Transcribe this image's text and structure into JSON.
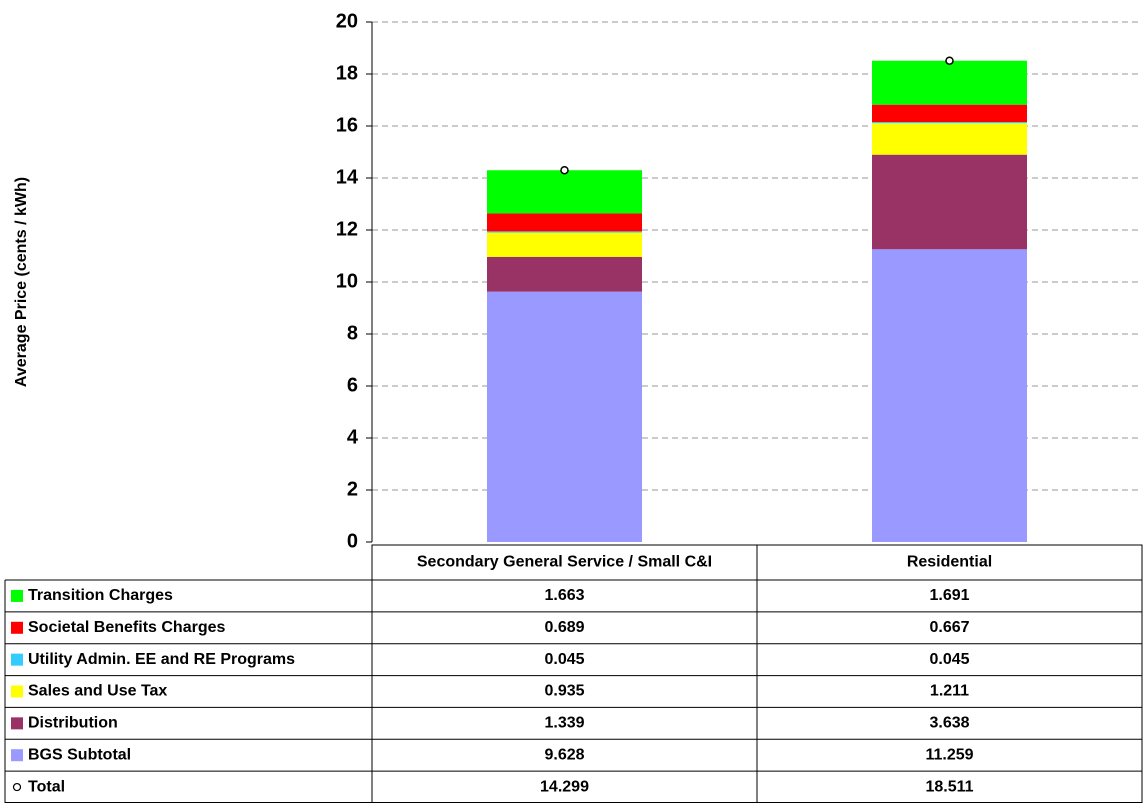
{
  "chart_data": {
    "type": "stacked-bar",
    "y_label": "Average Price (cents / kWh)",
    "categories": [
      "Secondary General Service / Small C&I",
      "Residential"
    ],
    "series": [
      {
        "name": "Transition Charges",
        "color": "#00ff00",
        "values": [
          1.663,
          1.691
        ]
      },
      {
        "name": "Societal Benefits Charges",
        "color": "#ff0000",
        "values": [
          0.689,
          0.667
        ]
      },
      {
        "name": "Utility Admin. EE and RE Programs",
        "color": "#33ccff",
        "values": [
          0.045,
          0.045
        ]
      },
      {
        "name": "Sales and Use Tax",
        "color": "#ffff00",
        "values": [
          0.935,
          1.211
        ]
      },
      {
        "name": "Distribution",
        "color": "#993366",
        "values": [
          1.339,
          3.638
        ]
      },
      {
        "name": "BGS Subtotal",
        "color": "#9999ff",
        "values": [
          9.628,
          11.259
        ]
      },
      {
        "name": "Total",
        "color": "#ffffff",
        "marker": true,
        "values": [
          14.299,
          18.511
        ]
      }
    ],
    "ylim": [
      0,
      20
    ],
    "yticks": [
      0,
      2,
      4,
      6,
      8,
      10,
      12,
      14,
      16,
      18,
      20
    ],
    "grid": true,
    "data_table": true
  }
}
